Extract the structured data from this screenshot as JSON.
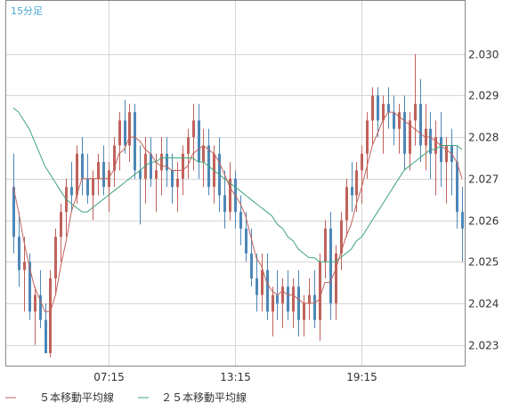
{
  "timeframe_label": "15分足",
  "colors": {
    "up": "#c0625b",
    "down": "#4d87b8",
    "ma5": "#c0625b",
    "ma25": "#3fa57a",
    "grid": "#d6d6d6",
    "axis": "#888888"
  },
  "chart_data": {
    "type": "candlestick",
    "ylim": [
      2.0225,
      2.0313
    ],
    "yticks": [
      "2.023",
      "2.024",
      "2.025",
      "2.026",
      "2.027",
      "2.028",
      "2.029",
      "2.030"
    ],
    "xticks": [
      "07:15",
      "13:15",
      "19:15"
    ],
    "xtick_index": [
      18,
      42,
      66
    ],
    "legend": [
      {
        "name": "５本移動平均線",
        "color": "#c0625b"
      },
      {
        "name": "２５本移動平均線",
        "color": "#3fa57a"
      }
    ],
    "candles": [
      [
        2.0268,
        2.0276,
        2.0252,
        2.0256
      ],
      [
        2.0256,
        2.0262,
        2.0244,
        2.0248
      ],
      [
        2.0248,
        2.0256,
        2.0238,
        2.025
      ],
      [
        2.025,
        2.0252,
        2.0236,
        2.0238
      ],
      [
        2.0238,
        2.0244,
        2.023,
        2.0242
      ],
      [
        2.0242,
        2.0248,
        2.0234,
        2.0236
      ],
      [
        2.0236,
        2.024,
        2.0228,
        2.0228
      ],
      [
        2.0228,
        2.0248,
        2.0227,
        2.0246
      ],
      [
        2.0246,
        2.0258,
        2.0242,
        2.0256
      ],
      [
        2.0256,
        2.0264,
        2.025,
        2.0262
      ],
      [
        2.0262,
        2.027,
        2.0256,
        2.0268
      ],
      [
        2.0268,
        2.0274,
        2.0262,
        2.0266
      ],
      [
        2.0266,
        2.0278,
        2.0264,
        2.0276
      ],
      [
        2.0276,
        2.028,
        2.0266,
        2.027
      ],
      [
        2.027,
        2.0276,
        2.0264,
        2.0266
      ],
      [
        2.0266,
        2.0272,
        2.026,
        2.027
      ],
      [
        2.027,
        2.0276,
        2.0266,
        2.0274
      ],
      [
        2.0274,
        2.0278,
        2.0266,
        2.0268
      ],
      [
        2.0268,
        2.0274,
        2.0262,
        2.0272
      ],
      [
        2.0272,
        2.028,
        2.0268,
        2.0278
      ],
      [
        2.0278,
        2.0286,
        2.0272,
        2.0284
      ],
      [
        2.0284,
        2.0289,
        2.0276,
        2.0278
      ],
      [
        2.0278,
        2.0288,
        2.0274,
        2.0286
      ],
      [
        2.0286,
        2.0288,
        2.027,
        2.0272
      ],
      [
        2.0272,
        2.0278,
        2.0259,
        2.027
      ],
      [
        2.027,
        2.028,
        2.0264,
        2.0276
      ],
      [
        2.0276,
        2.028,
        2.0268,
        2.027
      ],
      [
        2.027,
        2.0276,
        2.0262,
        2.0272
      ],
      [
        2.0272,
        2.028,
        2.0266,
        2.0276
      ],
      [
        2.0276,
        2.028,
        2.0268,
        2.0272
      ],
      [
        2.0272,
        2.0276,
        2.0264,
        2.0268
      ],
      [
        2.0268,
        2.0274,
        2.0262,
        2.027
      ],
      [
        2.027,
        2.0278,
        2.0266,
        2.0276
      ],
      [
        2.0276,
        2.0282,
        2.027,
        2.028
      ],
      [
        2.028,
        2.0288,
        2.0272,
        2.0284
      ],
      [
        2.0284,
        2.0288,
        2.027,
        2.0274
      ],
      [
        2.0274,
        2.0282,
        2.0268,
        2.0278
      ],
      [
        2.0278,
        2.0282,
        2.0266,
        2.0268
      ],
      [
        2.0268,
        2.0278,
        2.0264,
        2.0276
      ],
      [
        2.0276,
        2.028,
        2.0262,
        2.0266
      ],
      [
        2.0266,
        2.0272,
        2.0258,
        2.0262
      ],
      [
        2.0262,
        2.0274,
        2.026,
        2.027
      ],
      [
        2.027,
        2.0272,
        2.0258,
        2.0262
      ],
      [
        2.0262,
        2.0266,
        2.0254,
        2.0258
      ],
      [
        2.0258,
        2.0262,
        2.025,
        2.0252
      ],
      [
        2.0252,
        2.0258,
        2.0244,
        2.0246
      ],
      [
        2.0246,
        2.0252,
        2.0238,
        2.0242
      ],
      [
        2.0242,
        2.0252,
        2.0238,
        2.0248
      ],
      [
        2.0248,
        2.0252,
        2.0236,
        2.0238
      ],
      [
        2.0238,
        2.0244,
        2.0232,
        2.0242
      ],
      [
        2.0242,
        2.0248,
        2.0236,
        2.024
      ],
      [
        2.024,
        2.0246,
        2.0234,
        2.0244
      ],
      [
        2.0244,
        2.0248,
        2.0236,
        2.0238
      ],
      [
        2.0238,
        2.0246,
        2.0234,
        2.0244
      ],
      [
        2.0244,
        2.0248,
        2.0232,
        2.0236
      ],
      [
        2.0236,
        2.0242,
        2.0232,
        2.024
      ],
      [
        2.024,
        2.0246,
        2.0236,
        2.0242
      ],
      [
        2.0242,
        2.0248,
        2.0234,
        2.0236
      ],
      [
        2.0236,
        2.0252,
        2.0231,
        2.025
      ],
      [
        2.025,
        2.026,
        2.0246,
        2.0258
      ],
      [
        2.0258,
        2.0262,
        2.0236,
        2.024
      ],
      [
        2.024,
        2.0254,
        2.0236,
        2.0252
      ],
      [
        2.0252,
        2.0262,
        2.0248,
        2.026
      ],
      [
        2.026,
        2.027,
        2.0256,
        2.0268
      ],
      [
        2.0268,
        2.0274,
        2.0262,
        2.0266
      ],
      [
        2.0266,
        2.0274,
        2.0262,
        2.0272
      ],
      [
        2.0272,
        2.0278,
        2.0264,
        2.0276
      ],
      [
        2.0276,
        2.0286,
        2.027,
        2.0284
      ],
      [
        2.0284,
        2.0292,
        2.0278,
        2.029
      ],
      [
        2.029,
        2.0292,
        2.028,
        2.0284
      ],
      [
        2.0284,
        2.029,
        2.0276,
        2.0288
      ],
      [
        2.0288,
        2.0292,
        2.0282,
        2.0286
      ],
      [
        2.0286,
        2.029,
        2.0278,
        2.0282
      ],
      [
        2.0282,
        2.0288,
        2.0276,
        2.0286
      ],
      [
        2.0286,
        2.029,
        2.0272,
        2.0276
      ],
      [
        2.0276,
        2.0286,
        2.0272,
        2.0284
      ],
      [
        2.0284,
        2.03,
        2.0278,
        2.0288
      ],
      [
        2.0288,
        2.0294,
        2.0274,
        2.0278
      ],
      [
        2.0278,
        2.0288,
        2.0272,
        2.0282
      ],
      [
        2.0282,
        2.0286,
        2.027,
        2.0276
      ],
      [
        2.0276,
        2.0284,
        2.0266,
        2.028
      ],
      [
        2.028,
        2.0286,
        2.0268,
        2.0274
      ],
      [
        2.0274,
        2.028,
        2.0264,
        2.0278
      ],
      [
        2.0278,
        2.0282,
        2.0266,
        2.0274
      ],
      [
        2.0274,
        2.0278,
        2.0258,
        2.0262
      ],
      [
        2.0262,
        2.0268,
        2.025,
        2.0258
      ]
    ],
    "ma5": [
      2.0268,
      2.0262,
      2.0255,
      2.0249,
      2.0244,
      2.0241,
      2.0238,
      2.0238,
      2.0242,
      2.0249,
      2.0255,
      2.0262,
      2.0266,
      2.027,
      2.027,
      2.027,
      2.027,
      2.027,
      2.027,
      2.0272,
      2.0276,
      2.0277,
      2.028,
      2.028,
      2.0279,
      2.0277,
      2.0276,
      2.0274,
      2.0273,
      2.0273,
      2.0272,
      2.0272,
      2.0272,
      2.0273,
      2.0276,
      2.0277,
      2.0278,
      2.0277,
      2.0276,
      2.0274,
      2.0271,
      2.0268,
      2.0266,
      2.0264,
      2.0261,
      2.0256,
      2.0251,
      2.0249,
      2.0245,
      2.0243,
      2.0242,
      2.0243,
      2.0242,
      2.0242,
      2.0241,
      2.024,
      2.024,
      2.024,
      2.0241,
      2.0245,
      2.0245,
      2.0248,
      2.0252,
      2.0256,
      2.0259,
      2.0264,
      2.0268,
      2.0273,
      2.0278,
      2.0281,
      2.0284,
      2.0286,
      2.0286,
      2.0285,
      2.0284,
      2.0283,
      2.0282,
      2.0281,
      2.028,
      2.028,
      2.0279,
      2.0278,
      2.0277,
      2.0276,
      2.0274,
      2.027
    ],
    "ma25": [
      2.0287,
      2.0286,
      2.0284,
      2.0282,
      2.0279,
      2.0276,
      2.0273,
      2.0271,
      2.0269,
      2.0267,
      2.0265,
      2.0264,
      2.0263,
      2.0262,
      2.0262,
      2.0263,
      2.0264,
      2.0265,
      2.0266,
      2.0267,
      2.0268,
      2.0269,
      2.027,
      2.0271,
      2.0272,
      2.0273,
      2.0274,
      2.0274,
      2.0275,
      2.0275,
      2.0275,
      2.0275,
      2.0275,
      2.0275,
      2.0275,
      2.0274,
      2.0274,
      2.0273,
      2.0272,
      2.0271,
      2.027,
      2.0269,
      2.0268,
      2.0267,
      2.0266,
      2.0265,
      2.0264,
      2.0263,
      2.0262,
      2.0261,
      2.0259,
      2.0258,
      2.0256,
      2.0255,
      2.0253,
      2.0252,
      2.0251,
      2.0251,
      2.025,
      2.025,
      2.025,
      2.025,
      2.0251,
      2.0252,
      2.0253,
      2.0255,
      2.0256,
      2.0258,
      2.026,
      2.0262,
      2.0264,
      2.0266,
      2.0268,
      2.027,
      2.0272,
      2.0273,
      2.0274,
      2.0275,
      2.0276,
      2.0277,
      2.0277,
      2.0278,
      2.0278,
      2.0278,
      2.0278,
      2.0277
    ]
  }
}
